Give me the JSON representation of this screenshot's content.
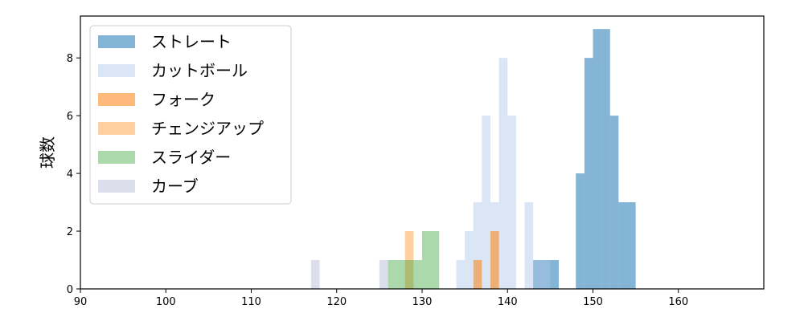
{
  "chart_data": {
    "type": "bar",
    "title": "",
    "xlabel": "",
    "ylabel": "球数",
    "xlim": [
      90,
      170
    ],
    "ylim": [
      0,
      9.45
    ],
    "xticks": [
      90,
      100,
      110,
      120,
      130,
      140,
      150,
      160
    ],
    "yticks": [
      0,
      2,
      4,
      6,
      8
    ],
    "grid": false,
    "legend_position": "top-left",
    "series": [
      {
        "name": "ストレート",
        "color": "#1f77b4",
        "opacity": 0.55,
        "bins": [
          {
            "x0": 143,
            "x1": 144,
            "value": 1
          },
          {
            "x0": 144,
            "x1": 145,
            "value": 1
          },
          {
            "x0": 145,
            "x1": 146,
            "value": 1
          },
          {
            "x0": 148,
            "x1": 149,
            "value": 4
          },
          {
            "x0": 149,
            "x1": 150,
            "value": 8
          },
          {
            "x0": 150,
            "x1": 151,
            "value": 9
          },
          {
            "x0": 151,
            "x1": 152,
            "value": 9
          },
          {
            "x0": 152,
            "x1": 153,
            "value": 6
          },
          {
            "x0": 153,
            "x1": 154,
            "value": 3
          },
          {
            "x0": 154,
            "x1": 155,
            "value": 3
          }
        ]
      },
      {
        "name": "カットボール",
        "color": "#aec7e8",
        "opacity": 0.45,
        "bins": [
          {
            "x0": 134,
            "x1": 135,
            "value": 1
          },
          {
            "x0": 135,
            "x1": 136,
            "value": 2
          },
          {
            "x0": 136,
            "x1": 137,
            "value": 3
          },
          {
            "x0": 137,
            "x1": 138,
            "value": 6
          },
          {
            "x0": 138,
            "x1": 139,
            "value": 3
          },
          {
            "x0": 139,
            "x1": 140,
            "value": 8
          },
          {
            "x0": 140,
            "x1": 141,
            "value": 6
          },
          {
            "x0": 142,
            "x1": 143,
            "value": 3
          },
          {
            "x0": 143,
            "x1": 144,
            "value": 1
          },
          {
            "x0": 144,
            "x1": 145,
            "value": 1
          }
        ]
      },
      {
        "name": "フォーク",
        "color": "#ff7f0e",
        "opacity": 0.55,
        "bins": [
          {
            "x0": 136,
            "x1": 137,
            "value": 1
          },
          {
            "x0": 138,
            "x1": 139,
            "value": 2
          }
        ]
      },
      {
        "name": "チェンジアップ",
        "color": "#ffbb78",
        "opacity": 0.7,
        "bins": [
          {
            "x0": 128,
            "x1": 129,
            "value": 2
          }
        ]
      },
      {
        "name": "スライダー",
        "color": "#2ca02c",
        "opacity": 0.4,
        "bins": [
          {
            "x0": 126,
            "x1": 127,
            "value": 1
          },
          {
            "x0": 127,
            "x1": 128,
            "value": 1
          },
          {
            "x0": 128,
            "x1": 129,
            "value": 1
          },
          {
            "x0": 129,
            "x1": 130,
            "value": 1
          },
          {
            "x0": 130,
            "x1": 131,
            "value": 2
          },
          {
            "x0": 131,
            "x1": 132,
            "value": 2
          }
        ]
      },
      {
        "name": "カーブ",
        "color": "#c5c8e0",
        "opacity": 0.6,
        "bins": [
          {
            "x0": 117,
            "x1": 118,
            "value": 1
          },
          {
            "x0": 125,
            "x1": 126,
            "value": 1
          }
        ]
      }
    ]
  }
}
